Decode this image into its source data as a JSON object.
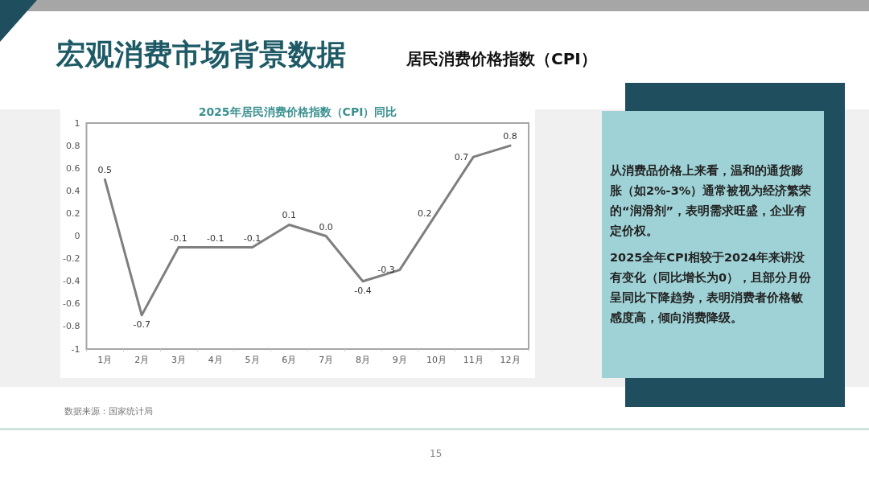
{
  "chart_data": {
    "type": "line",
    "title": "2025年居民消费价格指数（CPI）同比",
    "annotations": [
      "宏观消费市场背景数据",
      "居民消费价格指数（CPI）",
      "从消费品价格上来看，温和的通货膨胀（如2%-3%）通常被视为经济繁荣的“润滑剂”，表明需求旺盛，企业有定价权。",
      "2025全年CPI相较于2024年来讲没有变化（同比增长为0），且部分月份呈同比下降趋势，表明消费者价格敏感度高，倾向消费降级。",
      "数据来源：国家统计局",
      "15"
    ],
    "categories": [
      "1月",
      "2月",
      "3月",
      "4月",
      "5月",
      "6月",
      "7月",
      "8月",
      "9月",
      "10月",
      "11月",
      "12月"
    ],
    "series": [
      {
        "color": "#7f7f7f",
        "values": [
          0.5,
          -0.7,
          -0.1,
          -0.1,
          -0.1,
          0.1,
          0.0,
          -0.4,
          -0.3,
          0.2,
          0.7,
          0.8
        ],
        "value_labels": [
          "0.5",
          "-0.7",
          "-0.1",
          "-0.1",
          "-0.1",
          "0.1",
          "0.0",
          "-0.4",
          "-0.3",
          "0.2",
          "0.7",
          "0.8"
        ]
      }
    ],
    "ylim": [
      -1,
      1
    ],
    "yticks": [
      -1,
      -0.8,
      -0.6,
      -0.4,
      -0.2,
      0,
      0.2,
      0.4,
      0.6,
      0.8,
      1
    ],
    "grid": false,
    "marker": "none",
    "line_style": "solid"
  }
}
